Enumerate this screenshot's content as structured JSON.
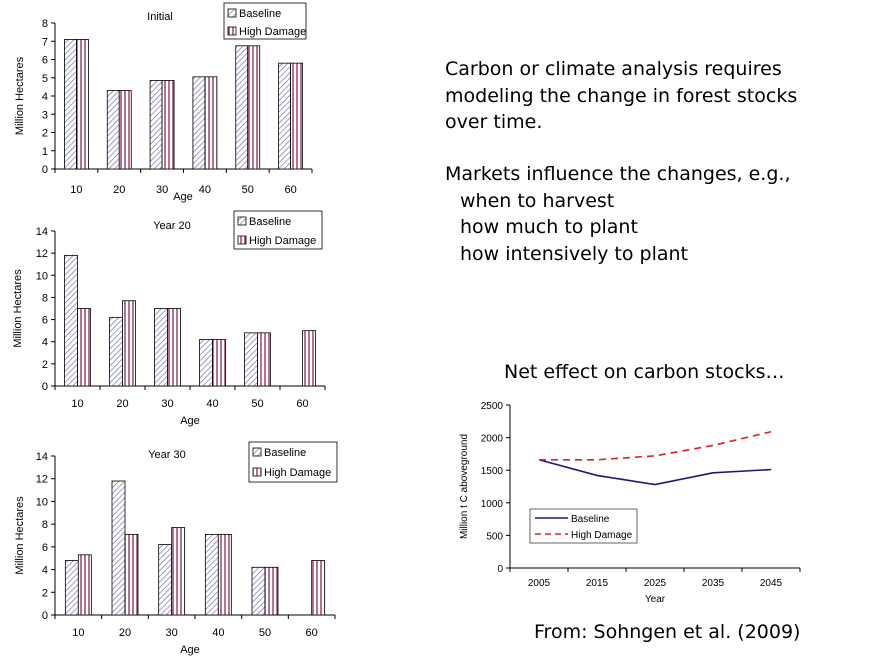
{
  "text": {
    "paragraph1": [
      "Carbon or climate analysis requires",
      "modeling the change in forest stocks",
      "over time."
    ],
    "paragraph2_lead": "Markets influence the changes, e.g.,",
    "paragraph2_items": [
      "when to harvest",
      "how much to plant",
      "how intensively to plant"
    ],
    "net_effect_heading": "Net effect on carbon stocks…",
    "source": "From: Sohngen et al. (2009)"
  },
  "colors": {
    "baseline": "#5a5aa0",
    "high_damage": "#8a2a52",
    "baseline_line": "#1a1a7a",
    "high_damage_line": "#e0201f"
  },
  "chart_data": [
    {
      "type": "bar",
      "title": "Initial",
      "xlabel": "Age",
      "ylabel": "Million Hectares",
      "categories": [
        "10",
        "20",
        "30",
        "40",
        "50",
        "60"
      ],
      "ylim": [
        0,
        8
      ],
      "yticks": [
        0,
        1,
        2,
        3,
        4,
        5,
        6,
        7,
        8
      ],
      "legend": "top-right",
      "series": [
        {
          "name": "Baseline",
          "values": [
            7.1,
            4.3,
            4.85,
            5.05,
            6.75,
            5.8
          ]
        },
        {
          "name": "High Damage",
          "values": [
            7.1,
            4.3,
            4.85,
            5.05,
            6.75,
            5.8
          ]
        }
      ]
    },
    {
      "type": "bar",
      "title": "Year 20",
      "xlabel": "Age",
      "ylabel": "Million Hectares",
      "categories": [
        "10",
        "20",
        "30",
        "40",
        "50",
        "60"
      ],
      "ylim": [
        0,
        14
      ],
      "yticks": [
        0,
        2,
        4,
        6,
        8,
        10,
        12,
        14
      ],
      "legend": "top-right",
      "series": [
        {
          "name": "Baseline",
          "values": [
            11.8,
            6.2,
            7.0,
            4.2,
            4.8,
            0
          ]
        },
        {
          "name": "High Damage",
          "values": [
            7.0,
            7.7,
            7.0,
            4.2,
            4.8,
            5.0
          ]
        }
      ]
    },
    {
      "type": "bar",
      "title": "Year 30",
      "xlabel": "Age",
      "ylabel": "Million Hectares",
      "categories": [
        "10",
        "20",
        "30",
        "40",
        "50",
        "60"
      ],
      "ylim": [
        0,
        14
      ],
      "yticks": [
        0,
        2,
        4,
        6,
        8,
        10,
        12,
        14
      ],
      "legend": "top-right",
      "series": [
        {
          "name": "Baseline",
          "values": [
            4.8,
            11.8,
            6.2,
            7.1,
            4.2,
            0
          ]
        },
        {
          "name": "High Damage",
          "values": [
            5.3,
            7.1,
            7.7,
            7.1,
            4.2,
            4.8
          ]
        }
      ]
    },
    {
      "type": "line",
      "title": "",
      "xlabel": "Year",
      "ylabel": "Million t C aboveground",
      "x": [
        2005,
        2015,
        2025,
        2035,
        2045
      ],
      "ylim": [
        0,
        2500
      ],
      "yticks": [
        0,
        500,
        1000,
        1500,
        2000,
        2500
      ],
      "legend": "bottom-left",
      "series": [
        {
          "name": "Baseline",
          "values": [
            1660,
            1420,
            1280,
            1460,
            1510
          ]
        },
        {
          "name": "High Damage",
          "values": [
            1660,
            1660,
            1720,
            1880,
            2090
          ]
        }
      ]
    }
  ]
}
